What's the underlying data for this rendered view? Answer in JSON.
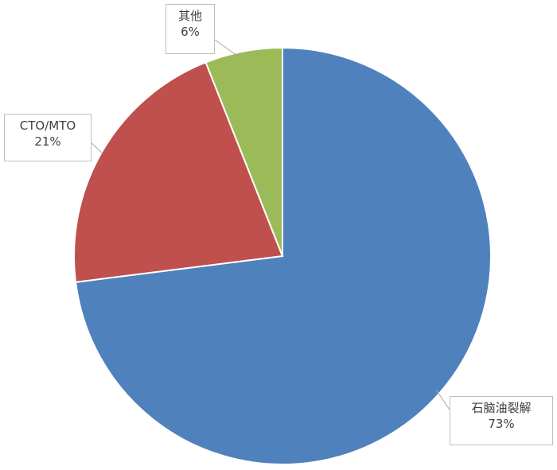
{
  "chart_data": {
    "type": "pie",
    "start_angle": "top",
    "direction": "clockwise",
    "slices": [
      {
        "label": "石脑油裂解",
        "value": 73,
        "display": "73%",
        "color": "#4F81BD"
      },
      {
        "label": "CTO/MTO",
        "value": 21,
        "display": "21%",
        "color": "#C0504D"
      },
      {
        "label": "其他",
        "value": 6,
        "display": "6%",
        "color": "#9BBB59"
      }
    ],
    "legend": "none"
  }
}
